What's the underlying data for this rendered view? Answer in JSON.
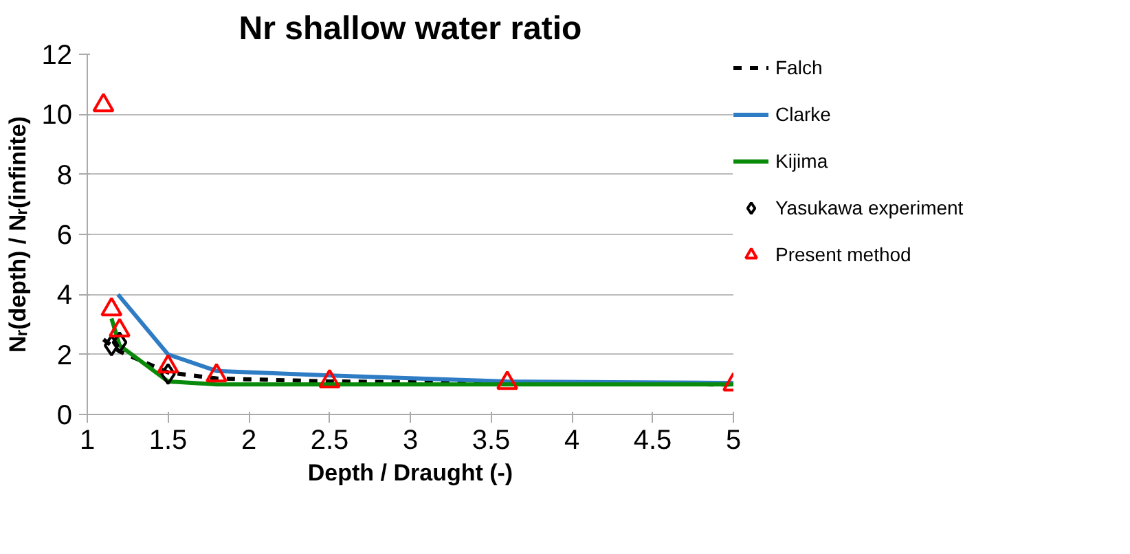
{
  "chart_data": {
    "type": "line",
    "title": "Nr shallow water ratio",
    "xlabel": "Depth / Draught (-)",
    "ylabel": "Nᵣ(depth) / Nᵣ(infinite)",
    "xlim": [
      1,
      5
    ],
    "xticks": [
      1,
      1.5,
      2,
      2.5,
      3,
      3.5,
      4,
      4.5,
      5
    ],
    "ylim": [
      0,
      12
    ],
    "yticks": [
      0,
      2,
      4,
      6,
      8,
      10,
      12
    ],
    "grid": "y",
    "legend": "right",
    "series": [
      {
        "name": "Falch",
        "color": "#000000",
        "line_style": "dashed",
        "x": [
          1.1,
          1.2,
          1.5,
          1.8,
          2.5,
          3.6,
          5
        ],
        "values": [
          2.5,
          2.1,
          1.4,
          1.2,
          1.1,
          1.05,
          1.0
        ]
      },
      {
        "name": "Clarke",
        "color": "#2e7cc4",
        "line_style": "solid",
        "x": [
          1.19,
          1.5,
          1.8,
          2.5,
          3.6,
          5
        ],
        "values": [
          4.0,
          2.0,
          1.45,
          1.3,
          1.1,
          1.05
        ]
      },
      {
        "name": "Kijima",
        "color": "#0a8a0a",
        "line_style": "solid",
        "x": [
          1.15,
          1.2,
          1.5,
          1.8,
          2.5,
          3.6,
          5
        ],
        "values": [
          3.2,
          2.3,
          1.1,
          1.0,
          1.0,
          1.0,
          1.0
        ]
      },
      {
        "name": "Yasukawa experiment",
        "type": "scatter",
        "marker": "diamond",
        "color": "#000000",
        "x": [
          1.15,
          1.2,
          1.5
        ],
        "values": [
          2.3,
          2.4,
          1.35
        ]
      },
      {
        "name": "Present method",
        "type": "scatter",
        "marker": "triangle",
        "color": "#ff0000",
        "x": [
          1.1,
          1.15,
          1.2,
          1.5,
          1.8,
          2.5,
          3.6,
          5
        ],
        "values": [
          10.3,
          3.5,
          2.8,
          1.6,
          1.3,
          1.1,
          1.05,
          1.0
        ]
      }
    ]
  }
}
